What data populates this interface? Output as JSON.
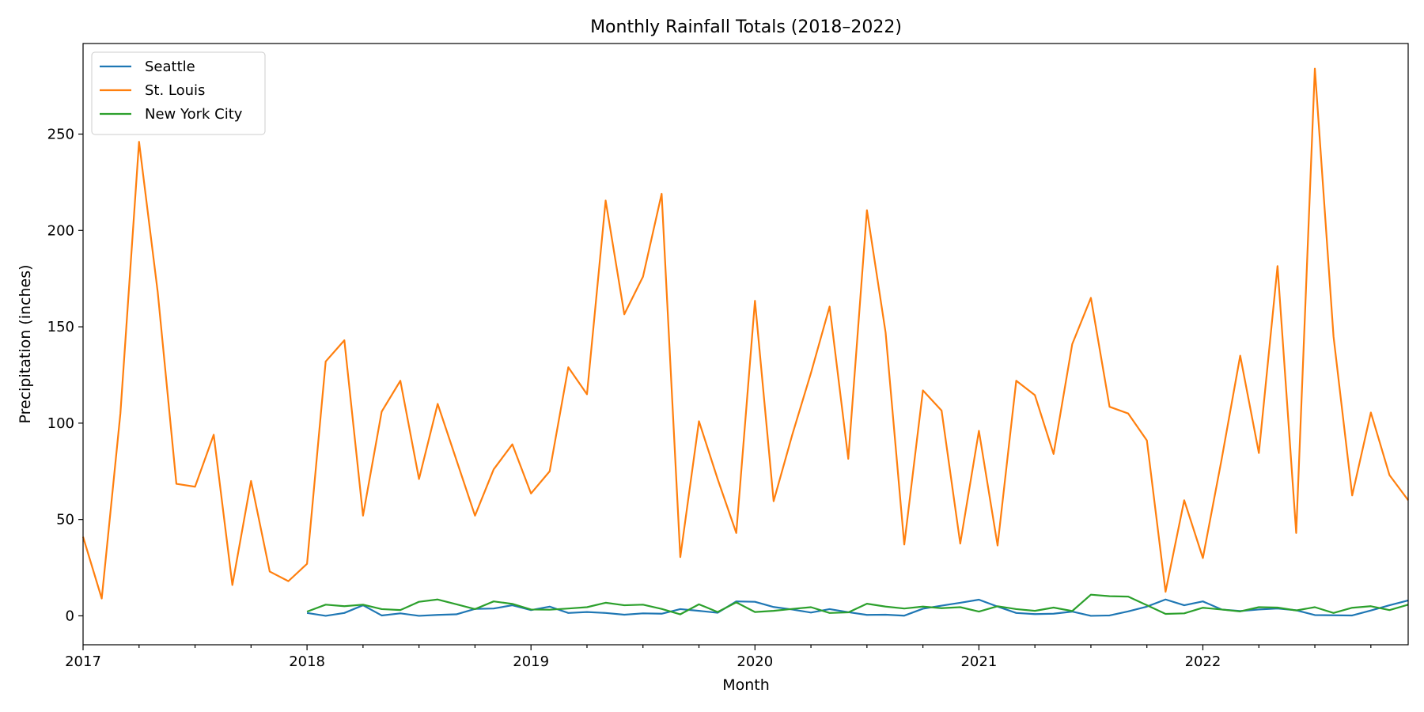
{
  "chart_data": {
    "type": "line",
    "title": "Monthly Rainfall Totals (2018–2022)",
    "xlabel": "Month",
    "ylabel": "Precipitation (inches)",
    "xlim": [
      "2017-01",
      "2022-12"
    ],
    "ylim": [
      -15,
      297
    ],
    "yticks": [
      0,
      50,
      100,
      150,
      200,
      250
    ],
    "xticks": [
      "2017",
      "2018",
      "2019",
      "2020",
      "2021",
      "2022"
    ],
    "grid": false,
    "legend_position": "top-left",
    "series": [
      {
        "name": "Seattle",
        "color": "#1f77b4",
        "start": "2018-01",
        "values": [
          1.5,
          0,
          1.5,
          5.5,
          0.2,
          1.3,
          0,
          0.5,
          0.8,
          3.6,
          3.8,
          5.5,
          3,
          4.8,
          1.5,
          2,
          1.5,
          0.6,
          1.3,
          1.1,
          3.5,
          2.6,
          1.6,
          7.5,
          7.3,
          4.6,
          3.3,
          1.7,
          3.5,
          1.9,
          0.5,
          0.6,
          0.1,
          3.7,
          5.3,
          6.8,
          8.4,
          4.8,
          1.5,
          0.9,
          1.1,
          2.2,
          0,
          0.2,
          2.3,
          4.8,
          8.5,
          5.5,
          7.5,
          3.3,
          2.5,
          3.3,
          3.8,
          2.9,
          0.4,
          0.3,
          0.2,
          2.8,
          5.5,
          8
        ]
      },
      {
        "name": "St. Louis",
        "color": "#ff7f0e",
        "start": "2017-01",
        "values": [
          41,
          9,
          105,
          246,
          168,
          68.5,
          67,
          94,
          16,
          70,
          23,
          18,
          27,
          132,
          143,
          52,
          106,
          122,
          71,
          110,
          81,
          52,
          76,
          89,
          63.5,
          75,
          129,
          115,
          215.5,
          156.5,
          176,
          219,
          30.5,
          101,
          71,
          43,
          163.5,
          59.5,
          94,
          126,
          160.5,
          81.5,
          210.5,
          147,
          37,
          117,
          106.5,
          37.5,
          96,
          36.5,
          122,
          114.5,
          84,
          141,
          165,
          108.5,
          105,
          91,
          12.5,
          60,
          30,
          81,
          135,
          84.5,
          181.5,
          43,
          284,
          145,
          62.5,
          105.5,
          73,
          60
        ]
      },
      {
        "name": "New York City",
        "color": "#2ca02c",
        "start": "2018-01",
        "values": [
          2.2,
          5.8,
          5,
          5.8,
          3.5,
          3,
          7.3,
          8.5,
          6,
          3.5,
          7.5,
          6.2,
          3.3,
          3.2,
          3.8,
          4.5,
          6.8,
          5.5,
          5.8,
          3.6,
          0.8,
          6,
          2,
          7,
          2,
          2.6,
          3.6,
          4.5,
          1.5,
          1.8,
          6.3,
          4.8,
          3.8,
          4.8,
          4,
          4.5,
          2.2,
          5,
          3.5,
          2.6,
          4.3,
          2.5,
          11,
          10.2,
          10,
          5.5,
          1,
          1.3,
          4.2,
          3.3,
          2.3,
          4.5,
          4.3,
          2.8,
          4.5,
          1.5,
          4.2,
          5,
          3,
          5.8
        ]
      }
    ]
  }
}
